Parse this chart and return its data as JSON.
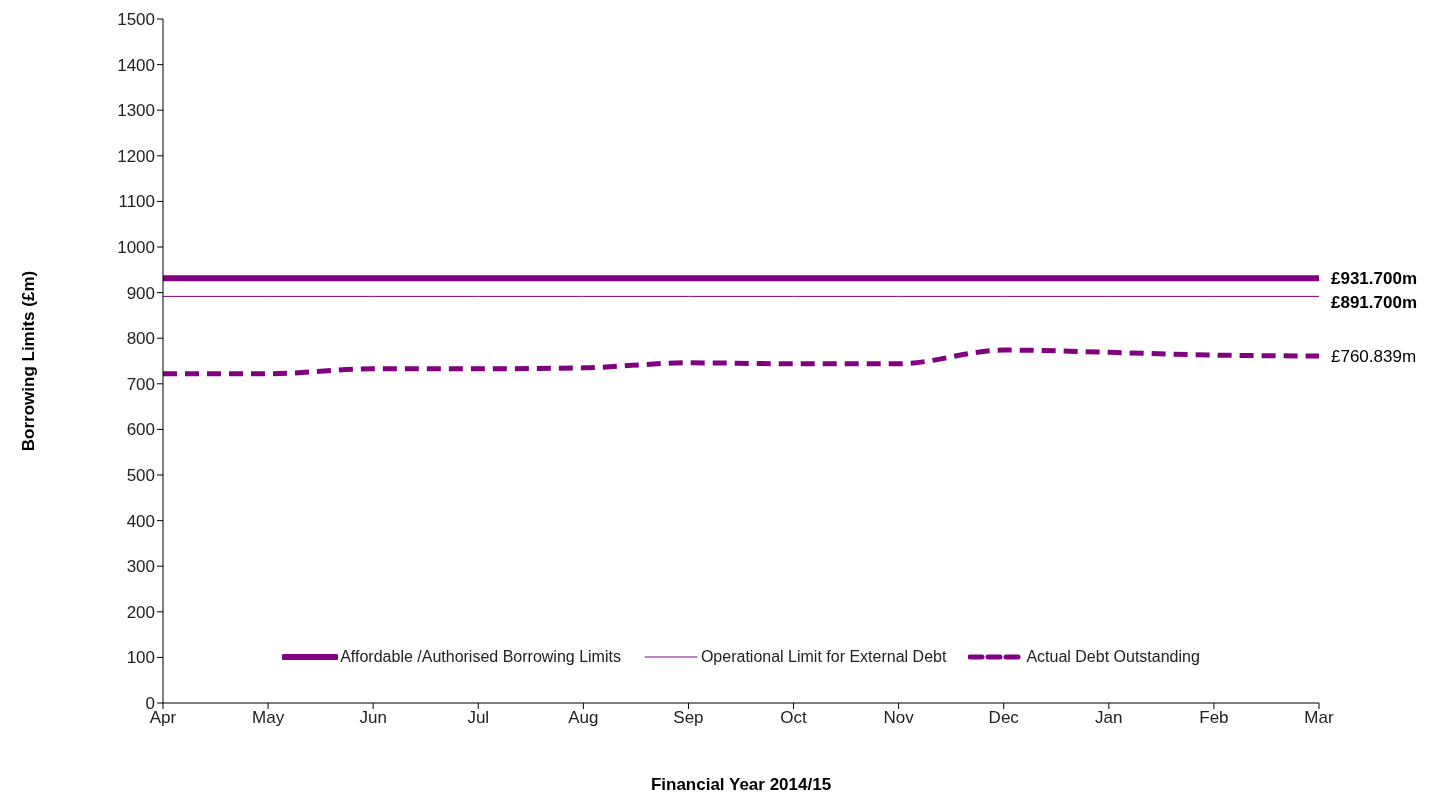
{
  "chart_data": {
    "type": "line",
    "xlabel": "Financial Year 2014/15",
    "ylabel": "Borrowing Limits (£m)",
    "categories": [
      "Apr",
      "May",
      "Jun",
      "Jul",
      "Aug",
      "Sep",
      "Oct",
      "Nov",
      "Dec",
      "Jan",
      "Feb",
      "Mar"
    ],
    "series": [
      {
        "name": "Affordable /Authorised Borrowing Limits",
        "color": "#800080",
        "line_style": "solid",
        "values": [
          931.7,
          931.7,
          931.7,
          931.7,
          931.7,
          931.7,
          931.7,
          931.7,
          931.7,
          931.7,
          931.7,
          931.7
        ],
        "value_labels": [
          null,
          null,
          null,
          null,
          null,
          null,
          null,
          null,
          null,
          null,
          null,
          "£931.700m"
        ]
      },
      {
        "name": "Operational Limit for External Debt",
        "color": "#800080",
        "line_style": "solid",
        "values": [
          891.7,
          891.7,
          891.7,
          891.7,
          891.7,
          891.7,
          891.7,
          891.7,
          891.7,
          891.7,
          891.7,
          891.7
        ],
        "value_labels": [
          null,
          null,
          null,
          null,
          null,
          null,
          null,
          null,
          null,
          null,
          null,
          "£891.700m"
        ]
      },
      {
        "name": "Actual Debt Outstanding",
        "color": "#800080",
        "line_style": "dashed",
        "values": [
          722,
          722,
          733,
          733,
          735,
          746,
          744,
          744,
          774,
          769,
          763,
          760.839
        ],
        "value_labels": [
          null,
          null,
          null,
          null,
          null,
          null,
          null,
          null,
          null,
          null,
          null,
          "£760.839m"
        ]
      }
    ],
    "ylim": [
      0,
      1500
    ],
    "yticks": [
      0,
      100,
      200,
      300,
      400,
      500,
      600,
      700,
      800,
      900,
      1000,
      1100,
      1200,
      1300,
      1400,
      1500
    ],
    "grid": false,
    "legend": "bottom",
    "marker": "none"
  }
}
